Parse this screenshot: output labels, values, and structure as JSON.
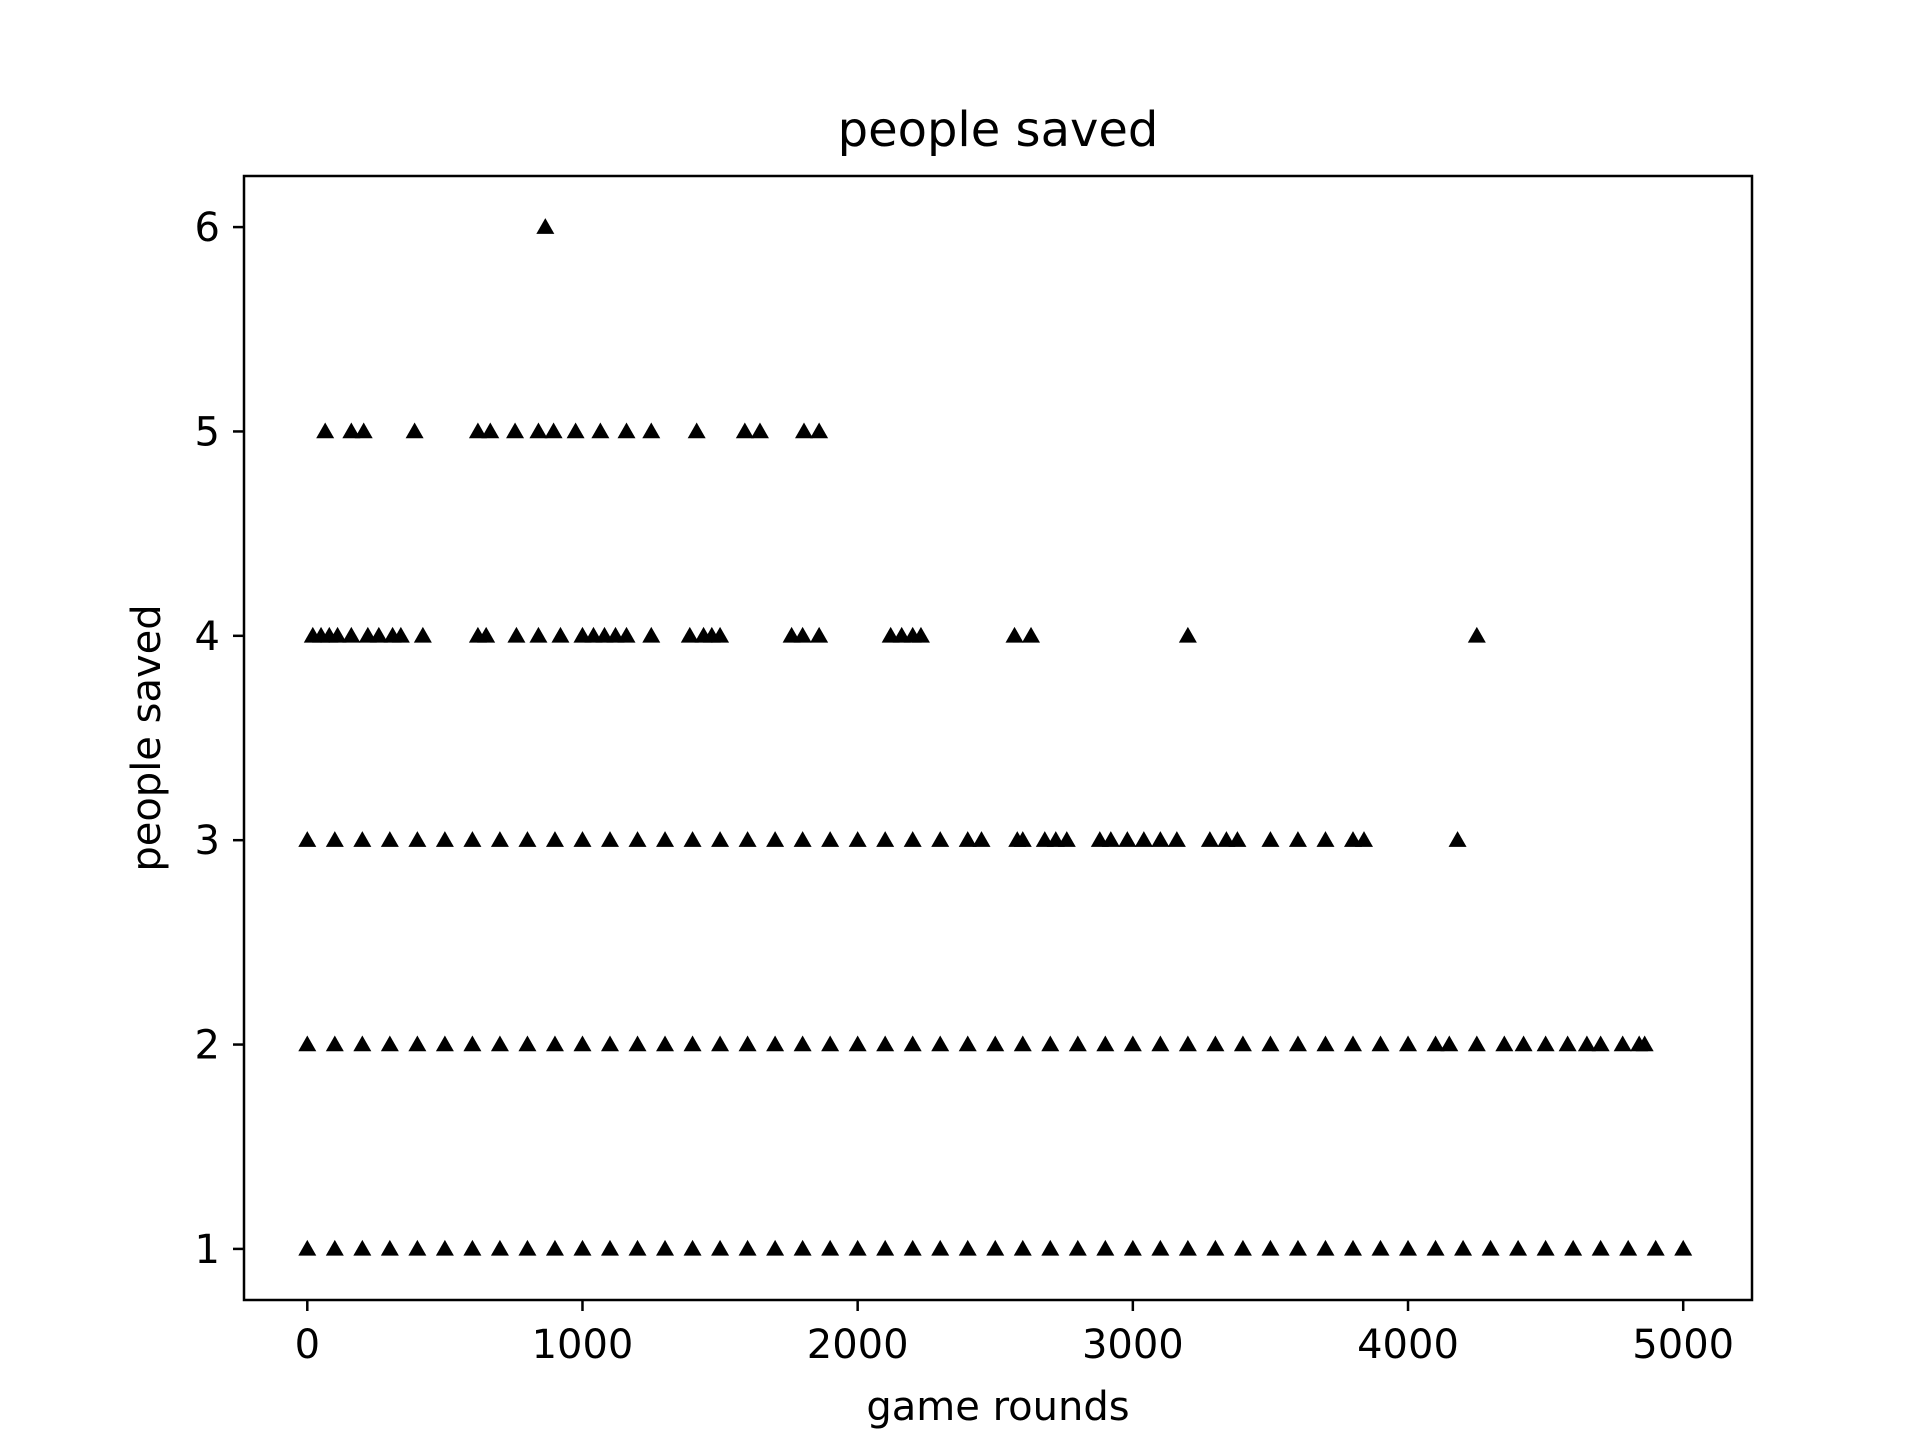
{
  "chart_data": {
    "type": "scatter",
    "title": "people saved",
    "xlabel": "game rounds",
    "ylabel": "people saved",
    "xlim": [
      -230,
      5250
    ],
    "ylim": [
      0.75,
      6.25
    ],
    "xticks": [
      0,
      1000,
      2000,
      3000,
      4000,
      5000
    ],
    "xtick_labels": [
      "0",
      "1000",
      "2000",
      "3000",
      "4000",
      "5000"
    ],
    "yticks": [
      1,
      2,
      3,
      4,
      5,
      6
    ],
    "ytick_labels": [
      "1",
      "2",
      "3",
      "4",
      "5",
      "6"
    ],
    "grid": false,
    "marker": "triangle-up",
    "marker_color": "#000000",
    "series": [
      {
        "points": [
          {
            "x": 0,
            "y": 1
          },
          {
            "x": 100,
            "y": 1
          },
          {
            "x": 200,
            "y": 1
          },
          {
            "x": 300,
            "y": 1
          },
          {
            "x": 400,
            "y": 1
          },
          {
            "x": 500,
            "y": 1
          },
          {
            "x": 600,
            "y": 1
          },
          {
            "x": 700,
            "y": 1
          },
          {
            "x": 800,
            "y": 1
          },
          {
            "x": 900,
            "y": 1
          },
          {
            "x": 1000,
            "y": 1
          },
          {
            "x": 1100,
            "y": 1
          },
          {
            "x": 1200,
            "y": 1
          },
          {
            "x": 1300,
            "y": 1
          },
          {
            "x": 1400,
            "y": 1
          },
          {
            "x": 1500,
            "y": 1
          },
          {
            "x": 1600,
            "y": 1
          },
          {
            "x": 1700,
            "y": 1
          },
          {
            "x": 1800,
            "y": 1
          },
          {
            "x": 1900,
            "y": 1
          },
          {
            "x": 2000,
            "y": 1
          },
          {
            "x": 2100,
            "y": 1
          },
          {
            "x": 2200,
            "y": 1
          },
          {
            "x": 2300,
            "y": 1
          },
          {
            "x": 2400,
            "y": 1
          },
          {
            "x": 2500,
            "y": 1
          },
          {
            "x": 2600,
            "y": 1
          },
          {
            "x": 2700,
            "y": 1
          },
          {
            "x": 2800,
            "y": 1
          },
          {
            "x": 2900,
            "y": 1
          },
          {
            "x": 3000,
            "y": 1
          },
          {
            "x": 3100,
            "y": 1
          },
          {
            "x": 3200,
            "y": 1
          },
          {
            "x": 3300,
            "y": 1
          },
          {
            "x": 3400,
            "y": 1
          },
          {
            "x": 3500,
            "y": 1
          },
          {
            "x": 3600,
            "y": 1
          },
          {
            "x": 3700,
            "y": 1
          },
          {
            "x": 3800,
            "y": 1
          },
          {
            "x": 3900,
            "y": 1
          },
          {
            "x": 4000,
            "y": 1
          },
          {
            "x": 4100,
            "y": 1
          },
          {
            "x": 4200,
            "y": 1
          },
          {
            "x": 4300,
            "y": 1
          },
          {
            "x": 4400,
            "y": 1
          },
          {
            "x": 4500,
            "y": 1
          },
          {
            "x": 4600,
            "y": 1
          },
          {
            "x": 4700,
            "y": 1
          },
          {
            "x": 4800,
            "y": 1
          },
          {
            "x": 4900,
            "y": 1
          },
          {
            "x": 5000,
            "y": 1
          },
          {
            "x": 0,
            "y": 2
          },
          {
            "x": 100,
            "y": 2
          },
          {
            "x": 200,
            "y": 2
          },
          {
            "x": 300,
            "y": 2
          },
          {
            "x": 400,
            "y": 2
          },
          {
            "x": 500,
            "y": 2
          },
          {
            "x": 600,
            "y": 2
          },
          {
            "x": 700,
            "y": 2
          },
          {
            "x": 800,
            "y": 2
          },
          {
            "x": 900,
            "y": 2
          },
          {
            "x": 1000,
            "y": 2
          },
          {
            "x": 1100,
            "y": 2
          },
          {
            "x": 1200,
            "y": 2
          },
          {
            "x": 1300,
            "y": 2
          },
          {
            "x": 1400,
            "y": 2
          },
          {
            "x": 1500,
            "y": 2
          },
          {
            "x": 1600,
            "y": 2
          },
          {
            "x": 1700,
            "y": 2
          },
          {
            "x": 1800,
            "y": 2
          },
          {
            "x": 1900,
            "y": 2
          },
          {
            "x": 2000,
            "y": 2
          },
          {
            "x": 2100,
            "y": 2
          },
          {
            "x": 2200,
            "y": 2
          },
          {
            "x": 2300,
            "y": 2
          },
          {
            "x": 2400,
            "y": 2
          },
          {
            "x": 2500,
            "y": 2
          },
          {
            "x": 2600,
            "y": 2
          },
          {
            "x": 2700,
            "y": 2
          },
          {
            "x": 2800,
            "y": 2
          },
          {
            "x": 2900,
            "y": 2
          },
          {
            "x": 3000,
            "y": 2
          },
          {
            "x": 3100,
            "y": 2
          },
          {
            "x": 3200,
            "y": 2
          },
          {
            "x": 3300,
            "y": 2
          },
          {
            "x": 3400,
            "y": 2
          },
          {
            "x": 3500,
            "y": 2
          },
          {
            "x": 3600,
            "y": 2
          },
          {
            "x": 3700,
            "y": 2
          },
          {
            "x": 3800,
            "y": 2
          },
          {
            "x": 3900,
            "y": 2
          },
          {
            "x": 4000,
            "y": 2
          },
          {
            "x": 4100,
            "y": 2
          },
          {
            "x": 4150,
            "y": 2
          },
          {
            "x": 4250,
            "y": 2
          },
          {
            "x": 4350,
            "y": 2
          },
          {
            "x": 4420,
            "y": 2
          },
          {
            "x": 4500,
            "y": 2
          },
          {
            "x": 4580,
            "y": 2
          },
          {
            "x": 4650,
            "y": 2
          },
          {
            "x": 4700,
            "y": 2
          },
          {
            "x": 4780,
            "y": 2
          },
          {
            "x": 4840,
            "y": 2
          },
          {
            "x": 4860,
            "y": 2
          },
          {
            "x": 0,
            "y": 3
          },
          {
            "x": 100,
            "y": 3
          },
          {
            "x": 200,
            "y": 3
          },
          {
            "x": 300,
            "y": 3
          },
          {
            "x": 400,
            "y": 3
          },
          {
            "x": 500,
            "y": 3
          },
          {
            "x": 600,
            "y": 3
          },
          {
            "x": 700,
            "y": 3
          },
          {
            "x": 800,
            "y": 3
          },
          {
            "x": 900,
            "y": 3
          },
          {
            "x": 1000,
            "y": 3
          },
          {
            "x": 1100,
            "y": 3
          },
          {
            "x": 1200,
            "y": 3
          },
          {
            "x": 1300,
            "y": 3
          },
          {
            "x": 1400,
            "y": 3
          },
          {
            "x": 1500,
            "y": 3
          },
          {
            "x": 1600,
            "y": 3
          },
          {
            "x": 1700,
            "y": 3
          },
          {
            "x": 1800,
            "y": 3
          },
          {
            "x": 1900,
            "y": 3
          },
          {
            "x": 2000,
            "y": 3
          },
          {
            "x": 2100,
            "y": 3
          },
          {
            "x": 2200,
            "y": 3
          },
          {
            "x": 2300,
            "y": 3
          },
          {
            "x": 2400,
            "y": 3
          },
          {
            "x": 2450,
            "y": 3
          },
          {
            "x": 2580,
            "y": 3
          },
          {
            "x": 2600,
            "y": 3
          },
          {
            "x": 2680,
            "y": 3
          },
          {
            "x": 2720,
            "y": 3
          },
          {
            "x": 2760,
            "y": 3
          },
          {
            "x": 2880,
            "y": 3
          },
          {
            "x": 2920,
            "y": 3
          },
          {
            "x": 2980,
            "y": 3
          },
          {
            "x": 3040,
            "y": 3
          },
          {
            "x": 3100,
            "y": 3
          },
          {
            "x": 3160,
            "y": 3
          },
          {
            "x": 3280,
            "y": 3
          },
          {
            "x": 3340,
            "y": 3
          },
          {
            "x": 3380,
            "y": 3
          },
          {
            "x": 3500,
            "y": 3
          },
          {
            "x": 3600,
            "y": 3
          },
          {
            "x": 3700,
            "y": 3
          },
          {
            "x": 3800,
            "y": 3
          },
          {
            "x": 3840,
            "y": 3
          },
          {
            "x": 4180,
            "y": 3
          },
          {
            "x": 20,
            "y": 4
          },
          {
            "x": 50,
            "y": 4
          },
          {
            "x": 80,
            "y": 4
          },
          {
            "x": 110,
            "y": 4
          },
          {
            "x": 160,
            "y": 4
          },
          {
            "x": 220,
            "y": 4
          },
          {
            "x": 260,
            "y": 4
          },
          {
            "x": 310,
            "y": 4
          },
          {
            "x": 340,
            "y": 4
          },
          {
            "x": 420,
            "y": 4
          },
          {
            "x": 620,
            "y": 4
          },
          {
            "x": 650,
            "y": 4
          },
          {
            "x": 760,
            "y": 4
          },
          {
            "x": 840,
            "y": 4
          },
          {
            "x": 920,
            "y": 4
          },
          {
            "x": 1000,
            "y": 4
          },
          {
            "x": 1040,
            "y": 4
          },
          {
            "x": 1080,
            "y": 4
          },
          {
            "x": 1120,
            "y": 4
          },
          {
            "x": 1160,
            "y": 4
          },
          {
            "x": 1250,
            "y": 4
          },
          {
            "x": 1390,
            "y": 4
          },
          {
            "x": 1440,
            "y": 4
          },
          {
            "x": 1470,
            "y": 4
          },
          {
            "x": 1500,
            "y": 4
          },
          {
            "x": 1760,
            "y": 4
          },
          {
            "x": 1800,
            "y": 4
          },
          {
            "x": 1860,
            "y": 4
          },
          {
            "x": 2120,
            "y": 4
          },
          {
            "x": 2160,
            "y": 4
          },
          {
            "x": 2200,
            "y": 4
          },
          {
            "x": 2230,
            "y": 4
          },
          {
            "x": 2570,
            "y": 4
          },
          {
            "x": 2630,
            "y": 4
          },
          {
            "x": 3200,
            "y": 4
          },
          {
            "x": 4250,
            "y": 4
          },
          {
            "x": 65,
            "y": 5
          },
          {
            "x": 160,
            "y": 5
          },
          {
            "x": 205,
            "y": 5
          },
          {
            "x": 390,
            "y": 5
          },
          {
            "x": 620,
            "y": 5
          },
          {
            "x": 665,
            "y": 5
          },
          {
            "x": 755,
            "y": 5
          },
          {
            "x": 840,
            "y": 5
          },
          {
            "x": 895,
            "y": 5
          },
          {
            "x": 975,
            "y": 5
          },
          {
            "x": 1065,
            "y": 5
          },
          {
            "x": 1160,
            "y": 5
          },
          {
            "x": 1250,
            "y": 5
          },
          {
            "x": 1415,
            "y": 5
          },
          {
            "x": 1590,
            "y": 5
          },
          {
            "x": 1645,
            "y": 5
          },
          {
            "x": 1805,
            "y": 5
          },
          {
            "x": 1860,
            "y": 5
          },
          {
            "x": 865,
            "y": 6
          }
        ]
      }
    ]
  }
}
